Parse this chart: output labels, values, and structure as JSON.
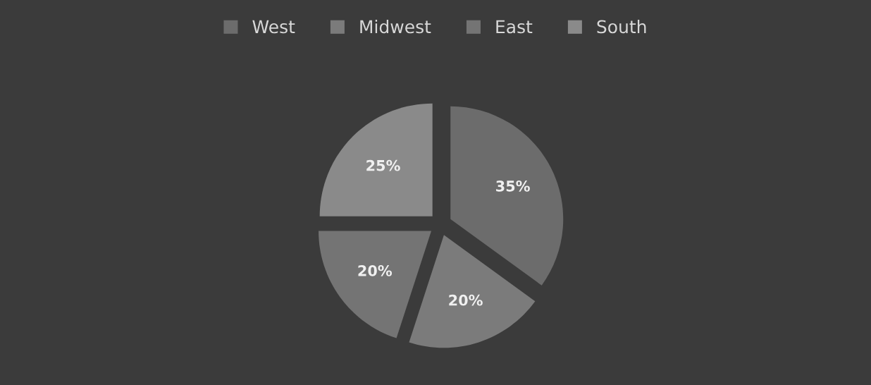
{
  "chart_data": {
    "type": "pie",
    "categories": [
      "West",
      "Midwest",
      "East",
      "South"
    ],
    "values": [
      35,
      20,
      20,
      25
    ],
    "value_labels": [
      "35%",
      "20%",
      "20%",
      "25%"
    ],
    "colors": [
      "#6c6c6c",
      "#7b7b7b",
      "#747474",
      "#8a8a8a"
    ],
    "legend": "top"
  }
}
